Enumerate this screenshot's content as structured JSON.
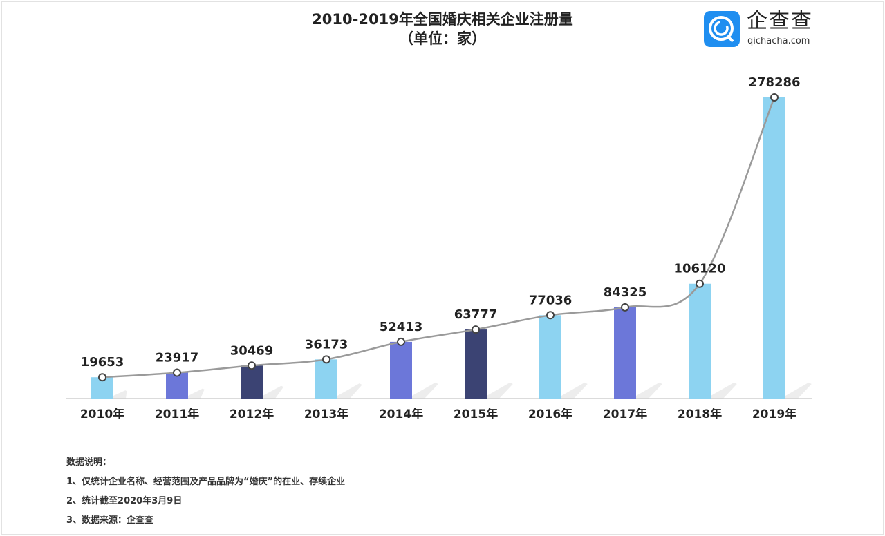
{
  "chart_data": {
    "type": "bar",
    "title": "2010-2019年全国婚庆相关企业注册量",
    "subtitle": "（单位：家）",
    "categories": [
      "2010年",
      "2011年",
      "2012年",
      "2013年",
      "2014年",
      "2015年",
      "2016年",
      "2017年",
      "2018年",
      "2019年"
    ],
    "values": [
      19653,
      23917,
      30469,
      36173,
      52413,
      63777,
      77036,
      84325,
      106120,
      278286
    ],
    "bar_colors": [
      "#8dd3f1",
      "#6c77d9",
      "#3b4373",
      "#8dd3f1",
      "#6c77d9",
      "#3b4373",
      "#8dd3f1",
      "#6c77d9",
      "#8dd3f1",
      "#8dd3f1"
    ],
    "line_overlay": true,
    "line_color": "#9a9a9a",
    "ylim": [
      0,
      278286
    ],
    "grid": false,
    "data_labels": true
  },
  "logo": {
    "name": "企查查",
    "url": "qichacha.com",
    "icon": "qichacha-logo-icon",
    "color": "#1f8ef0"
  },
  "notes": {
    "heading": "数据说明：",
    "items": [
      "1、仅统计企业名称、经营范围及产品品牌为“婚庆”的在业、存续企业",
      "2、统计截至2020年3月9日",
      "3、数据来源：企查查"
    ]
  }
}
